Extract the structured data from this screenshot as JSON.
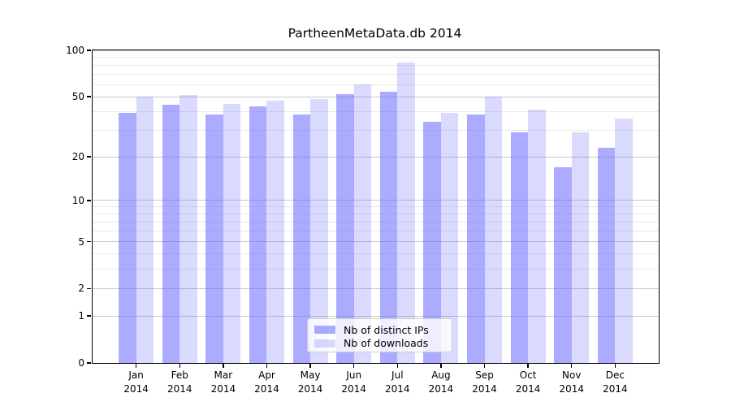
{
  "figure": {
    "background": "#ffffff"
  },
  "chart_data": {
    "type": "bar",
    "title": "PartheenMetaData.db 2014",
    "categories": [
      "Jan 2014",
      "Feb 2014",
      "Mar 2014",
      "Apr 2014",
      "May 2014",
      "Jun 2014",
      "Jul 2014",
      "Aug 2014",
      "Sep 2014",
      "Oct 2014",
      "Nov 2014",
      "Dec 2014"
    ],
    "month_labels": [
      "Jan",
      "Feb",
      "Mar",
      "Apr",
      "May",
      "Jun",
      "Jul",
      "Aug",
      "Sep",
      "Oct",
      "Nov",
      "Dec"
    ],
    "year_label": "2014",
    "series": [
      {
        "name": "Nb of distinct IPs",
        "color": "rgba(102,102,255,0.55)",
        "values": [
          39,
          44,
          38,
          43,
          38,
          52,
          54,
          34,
          38,
          29,
          17,
          23
        ]
      },
      {
        "name": "Nb of downloads",
        "color": "rgba(102,102,255,0.24)",
        "values": [
          50,
          51,
          45,
          47,
          48,
          60,
          83,
          39,
          50,
          41,
          29,
          36
        ]
      }
    ],
    "xlabel": "",
    "ylabel": "",
    "yscale": "log1p",
    "ylim": [
      0,
      100
    ],
    "y_major_ticks": [
      0,
      1,
      2,
      5,
      10,
      20,
      50,
      100
    ],
    "y_minor_gridlines": [
      3,
      4,
      6,
      7,
      8,
      9,
      30,
      40,
      60,
      70,
      80,
      90
    ],
    "grid": true,
    "legend_position": "lower center",
    "colors": {
      "bar_distinct_ips": "rgba(102,102,255,0.55)",
      "bar_downloads": "rgba(102,102,255,0.24)",
      "major_grid": "#c9c9c9",
      "minor_grid": "#e9e9e9",
      "spine": "#000000",
      "text": "#000000"
    }
  }
}
